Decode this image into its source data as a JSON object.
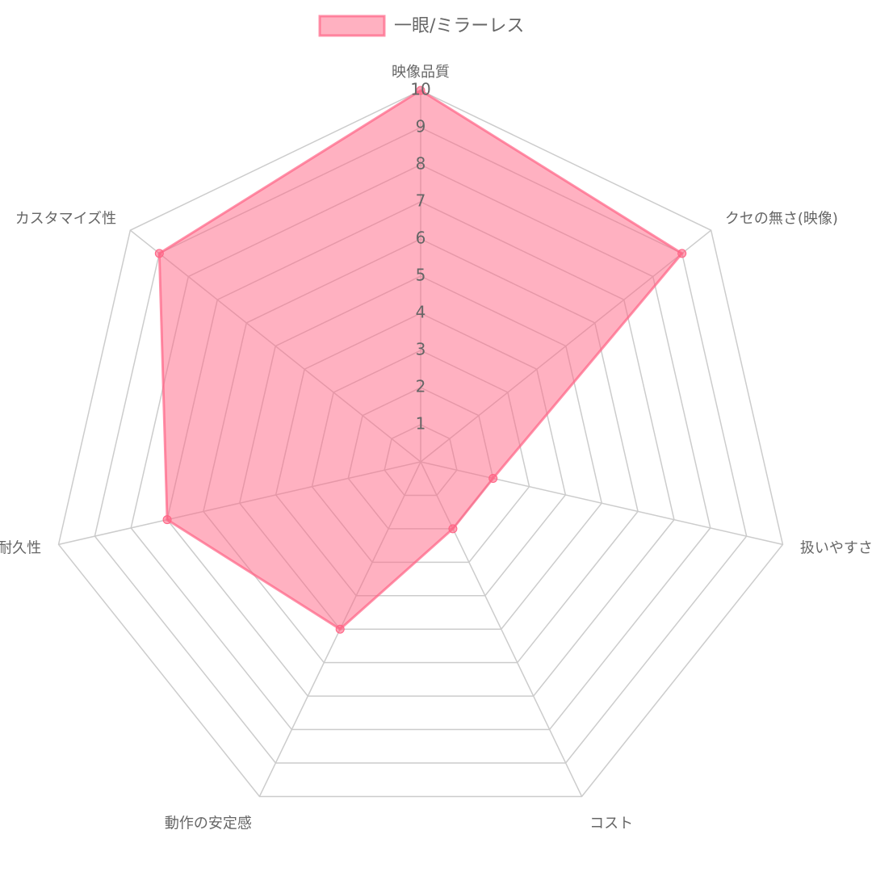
{
  "chart_data": {
    "type": "radar",
    "categories": [
      "映像品質",
      "クセの無さ(映像)",
      "扱いやすさ",
      "コスト",
      "動作の安定感",
      "耐久性",
      "カスタマイズ性"
    ],
    "series": [
      {
        "name": "一眼/ミラーレス",
        "color": "#ff6384",
        "values": [
          10,
          9,
          2,
          2,
          5,
          7,
          9
        ]
      }
    ],
    "ylim": [
      0,
      10
    ],
    "yticks": [
      1,
      2,
      3,
      4,
      5,
      6,
      7,
      8,
      9,
      10
    ],
    "grid": true,
    "legend": "top"
  }
}
